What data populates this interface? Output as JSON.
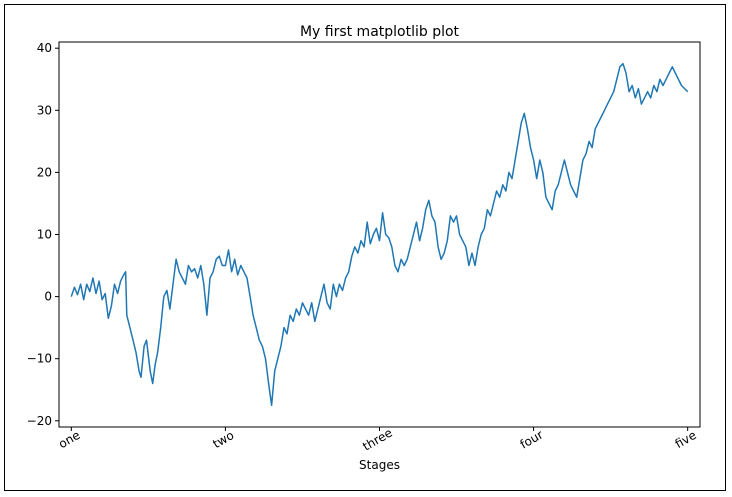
{
  "chart_data": {
    "type": "line",
    "title": "My first matplotlib plot",
    "xlabel": "Stages",
    "ylabel": "",
    "xlim": [
      -20,
      1020
    ],
    "ylim": [
      -21,
      41
    ],
    "grid": false,
    "legend": "none",
    "xticks": [
      {
        "value": 0,
        "label": "one"
      },
      {
        "value": 250,
        "label": "two"
      },
      {
        "value": 500,
        "label": "three"
      },
      {
        "value": 750,
        "label": "four"
      },
      {
        "value": 1000,
        "label": "five"
      }
    ],
    "yticks": [
      -20,
      -10,
      0,
      10,
      20,
      30,
      40
    ],
    "xtick_rotation": 30,
    "series": [
      {
        "color": "#1f77b4",
        "points": [
          [
            0,
            0
          ],
          [
            5,
            1.5
          ],
          [
            10,
            0.3
          ],
          [
            15,
            2
          ],
          [
            20,
            -0.5
          ],
          [
            25,
            2
          ],
          [
            30,
            0.8
          ],
          [
            35,
            3
          ],
          [
            40,
            0.5
          ],
          [
            45,
            2.5
          ],
          [
            50,
            -0.5
          ],
          [
            55,
            0.5
          ],
          [
            60,
            -3.5
          ],
          [
            65,
            -1.5
          ],
          [
            70,
            2
          ],
          [
            75,
            0.5
          ],
          [
            80,
            2.5
          ],
          [
            85,
            3.5
          ],
          [
            88,
            4
          ],
          [
            90,
            -3
          ],
          [
            95,
            -5
          ],
          [
            100,
            -7
          ],
          [
            105,
            -9
          ],
          [
            110,
            -12
          ],
          [
            113,
            -13
          ],
          [
            118,
            -8
          ],
          [
            122,
            -7
          ],
          [
            128,
            -12
          ],
          [
            132,
            -14
          ],
          [
            136,
            -11
          ],
          [
            140,
            -9
          ],
          [
            145,
            -5
          ],
          [
            150,
            0
          ],
          [
            155,
            1
          ],
          [
            160,
            -2
          ],
          [
            165,
            2
          ],
          [
            170,
            6
          ],
          [
            175,
            4
          ],
          [
            180,
            3
          ],
          [
            185,
            2
          ],
          [
            190,
            5
          ],
          [
            195,
            4
          ],
          [
            200,
            4.5
          ],
          [
            205,
            3
          ],
          [
            210,
            5
          ],
          [
            215,
            2
          ],
          [
            220,
            -3
          ],
          [
            225,
            3
          ],
          [
            230,
            4
          ],
          [
            235,
            6
          ],
          [
            240,
            6.5
          ],
          [
            245,
            5
          ],
          [
            250,
            5
          ],
          [
            255,
            7.5
          ],
          [
            260,
            4
          ],
          [
            265,
            6
          ],
          [
            270,
            3.5
          ],
          [
            275,
            5
          ],
          [
            280,
            4
          ],
          [
            285,
            3
          ],
          [
            290,
            0
          ],
          [
            295,
            -3
          ],
          [
            300,
            -5
          ],
          [
            305,
            -7
          ],
          [
            310,
            -8
          ],
          [
            315,
            -10
          ],
          [
            320,
            -14
          ],
          [
            325,
            -17.5
          ],
          [
            330,
            -12
          ],
          [
            335,
            -10
          ],
          [
            340,
            -8
          ],
          [
            345,
            -5
          ],
          [
            350,
            -6
          ],
          [
            355,
            -3
          ],
          [
            360,
            -4
          ],
          [
            365,
            -2
          ],
          [
            370,
            -3
          ],
          [
            375,
            -1
          ],
          [
            380,
            -2
          ],
          [
            385,
            -3
          ],
          [
            390,
            -1
          ],
          [
            395,
            -4
          ],
          [
            400,
            -2
          ],
          [
            405,
            0
          ],
          [
            410,
            2
          ],
          [
            415,
            -1
          ],
          [
            420,
            -2
          ],
          [
            425,
            2
          ],
          [
            430,
            0
          ],
          [
            435,
            2
          ],
          [
            440,
            1
          ],
          [
            445,
            3
          ],
          [
            450,
            4
          ],
          [
            455,
            6.5
          ],
          [
            460,
            8
          ],
          [
            465,
            7
          ],
          [
            470,
            9
          ],
          [
            475,
            8
          ],
          [
            480,
            12
          ],
          [
            485,
            8.5
          ],
          [
            490,
            10
          ],
          [
            495,
            11
          ],
          [
            500,
            9
          ],
          [
            505,
            13.5
          ],
          [
            510,
            10
          ],
          [
            515,
            9.5
          ],
          [
            520,
            8
          ],
          [
            525,
            5
          ],
          [
            530,
            4
          ],
          [
            535,
            6
          ],
          [
            540,
            5
          ],
          [
            545,
            6
          ],
          [
            550,
            8
          ],
          [
            555,
            10
          ],
          [
            560,
            12
          ],
          [
            565,
            9
          ],
          [
            570,
            11
          ],
          [
            575,
            14
          ],
          [
            580,
            15.5
          ],
          [
            585,
            13
          ],
          [
            590,
            12
          ],
          [
            595,
            8
          ],
          [
            600,
            6
          ],
          [
            605,
            7
          ],
          [
            610,
            9
          ],
          [
            615,
            13
          ],
          [
            620,
            12
          ],
          [
            625,
            13
          ],
          [
            630,
            10
          ],
          [
            635,
            9
          ],
          [
            640,
            8
          ],
          [
            645,
            5
          ],
          [
            650,
            7
          ],
          [
            655,
            5
          ],
          [
            660,
            8
          ],
          [
            665,
            10
          ],
          [
            670,
            11
          ],
          [
            675,
            14
          ],
          [
            680,
            13
          ],
          [
            685,
            15
          ],
          [
            690,
            17
          ],
          [
            695,
            16
          ],
          [
            700,
            18
          ],
          [
            705,
            17
          ],
          [
            710,
            20
          ],
          [
            715,
            19
          ],
          [
            720,
            22
          ],
          [
            725,
            25
          ],
          [
            730,
            28
          ],
          [
            735,
            29.5
          ],
          [
            740,
            27
          ],
          [
            745,
            24
          ],
          [
            750,
            22
          ],
          [
            755,
            19
          ],
          [
            760,
            22
          ],
          [
            765,
            20
          ],
          [
            770,
            16
          ],
          [
            775,
            15
          ],
          [
            780,
            14
          ],
          [
            785,
            17
          ],
          [
            790,
            18
          ],
          [
            795,
            20
          ],
          [
            800,
            22
          ],
          [
            805,
            20
          ],
          [
            810,
            18
          ],
          [
            815,
            17
          ],
          [
            820,
            16
          ],
          [
            825,
            19
          ],
          [
            830,
            22
          ],
          [
            835,
            23
          ],
          [
            840,
            25
          ],
          [
            845,
            24
          ],
          [
            850,
            27
          ],
          [
            855,
            28
          ],
          [
            860,
            29
          ],
          [
            865,
            30
          ],
          [
            870,
            31
          ],
          [
            875,
            32
          ],
          [
            880,
            33
          ],
          [
            885,
            35
          ],
          [
            890,
            37
          ],
          [
            895,
            37.5
          ],
          [
            900,
            36
          ],
          [
            905,
            33
          ],
          [
            910,
            34
          ],
          [
            915,
            32
          ],
          [
            920,
            33.5
          ],
          [
            925,
            31
          ],
          [
            930,
            32
          ],
          [
            935,
            33
          ],
          [
            940,
            32
          ],
          [
            945,
            34
          ],
          [
            950,
            33
          ],
          [
            955,
            35
          ],
          [
            960,
            34
          ],
          [
            965,
            35
          ],
          [
            970,
            36
          ],
          [
            975,
            37
          ],
          [
            980,
            36
          ],
          [
            985,
            35
          ],
          [
            990,
            34
          ],
          [
            995,
            33.5
          ],
          [
            1000,
            33
          ]
        ]
      }
    ]
  }
}
